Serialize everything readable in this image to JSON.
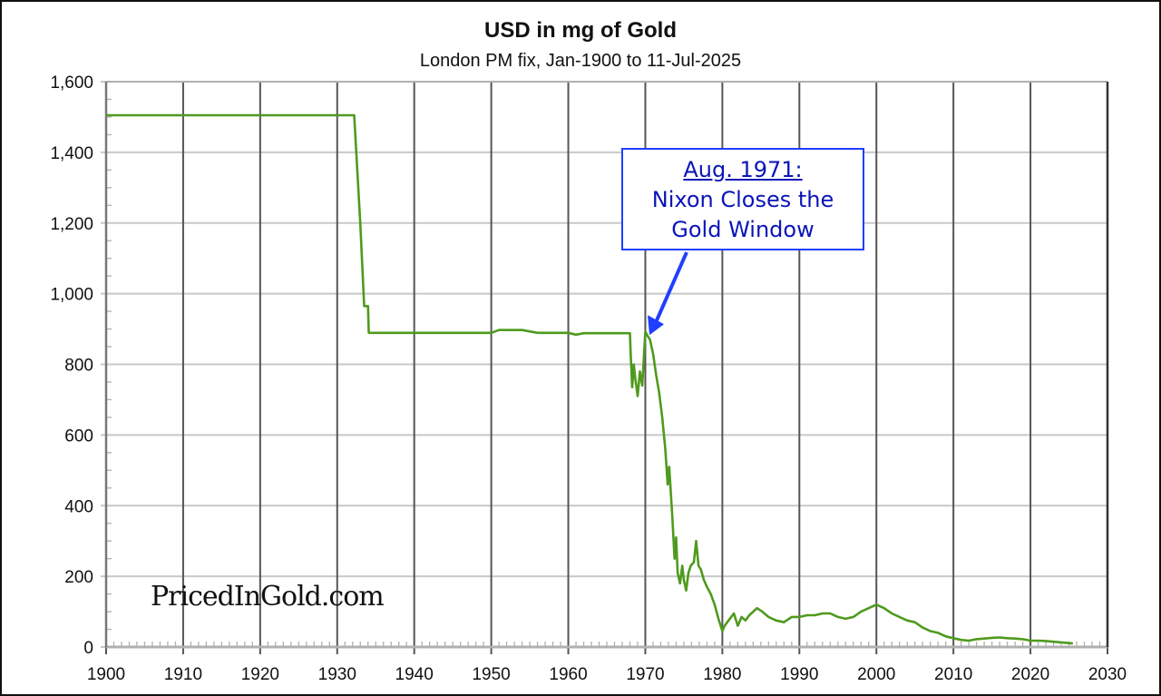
{
  "chart_data": {
    "type": "line",
    "title": "USD in mg of Gold",
    "subtitle": "London PM fix, Jan-1900 to 11-Jul-2025",
    "xlabel": "",
    "ylabel": "",
    "xlim": [
      1900,
      2030
    ],
    "ylim": [
      0,
      1600
    ],
    "x_ticks": [
      1900,
      1910,
      1920,
      1930,
      1940,
      1950,
      1960,
      1970,
      1980,
      1990,
      2000,
      2010,
      2020,
      2030
    ],
    "y_ticks": [
      0,
      200,
      400,
      600,
      800,
      1000,
      1200,
      1400,
      1600
    ],
    "y_tick_labels": [
      "0",
      "200",
      "400",
      "600",
      "800",
      "1,000",
      "1,200",
      "1,400",
      "1,600"
    ],
    "grid": {
      "x_major": true,
      "y_major": true,
      "x_minor_ticks_every": 1,
      "y_minor_ticks_every": 50
    },
    "legend": null,
    "series": [
      {
        "name": "USD in mg of Gold",
        "color": "#4f9a1e",
        "x": [
          1900,
          1932.2,
          1933.0,
          1933.5,
          1934.0,
          1934.1,
          1950,
          1951,
          1954,
          1956,
          1960,
          1961,
          1962,
          1965,
          1968.0,
          1968.1,
          1968.3,
          1968.5,
          1968.7,
          1969.0,
          1969.3,
          1969.6,
          1970.0,
          1970.3,
          1970.6,
          1971.0,
          1971.4,
          1971.8,
          1972.2,
          1972.6,
          1972.9,
          1973.1,
          1973.3,
          1973.5,
          1973.8,
          1974.0,
          1974.2,
          1974.5,
          1974.8,
          1975.0,
          1975.3,
          1975.6,
          1975.9,
          1976.3,
          1976.6,
          1976.9,
          1977.2,
          1977.6,
          1978.0,
          1978.5,
          1979.0,
          1979.5,
          1980.0,
          1980.3,
          1980.8,
          1981.5,
          1982.0,
          1982.5,
          1983.0,
          1983.5,
          1984.5,
          1985.2,
          1986.0,
          1987.0,
          1988.0,
          1989.0,
          1990.0,
          1991.0,
          1992.0,
          1993.0,
          1994.0,
          1995.0,
          1996.0,
          1997.0,
          1998.0,
          1999.0,
          2000.0,
          2001.0,
          2002.0,
          2003.0,
          2004.0,
          2005.0,
          2006.0,
          2007.0,
          2008.0,
          2009.0,
          2010.0,
          2011.0,
          2012.0,
          2013.0,
          2014.0,
          2015.0,
          2016.0,
          2017.0,
          2018.0,
          2019.0,
          2020.0,
          2021.0,
          2022.0,
          2023.0,
          2024.0,
          2025.5
        ],
        "y": [
          1505,
          1505,
          1200,
          965,
          965,
          889,
          889,
          897,
          897,
          889,
          889,
          884,
          888,
          888,
          888,
          830,
          735,
          800,
          760,
          710,
          780,
          740,
          893,
          880,
          870,
          830,
          770,
          720,
          650,
          560,
          460,
          510,
          440,
          370,
          250,
          310,
          210,
          180,
          230,
          190,
          160,
          210,
          230,
          240,
          300,
          230,
          220,
          190,
          170,
          150,
          120,
          80,
          45,
          60,
          75,
          95,
          60,
          85,
          75,
          90,
          110,
          100,
          85,
          75,
          70,
          85,
          85,
          90,
          90,
          95,
          95,
          85,
          80,
          85,
          100,
          110,
          120,
          110,
          95,
          85,
          75,
          70,
          55,
          45,
          40,
          30,
          25,
          20,
          18,
          22,
          24,
          26,
          27,
          25,
          24,
          22,
          18,
          18,
          17,
          15,
          13,
          10
        ]
      }
    ],
    "annotations": [
      {
        "text_header": "Aug. 1971:",
        "text_line1": "Nixon Closes the",
        "text_line2": "Gold Window",
        "arrow_to": {
          "x": 1970.3,
          "y": 893
        },
        "color": "#1f3fff",
        "text_color": "#0a14b8"
      }
    ],
    "watermark": "PricedInGold.com"
  }
}
